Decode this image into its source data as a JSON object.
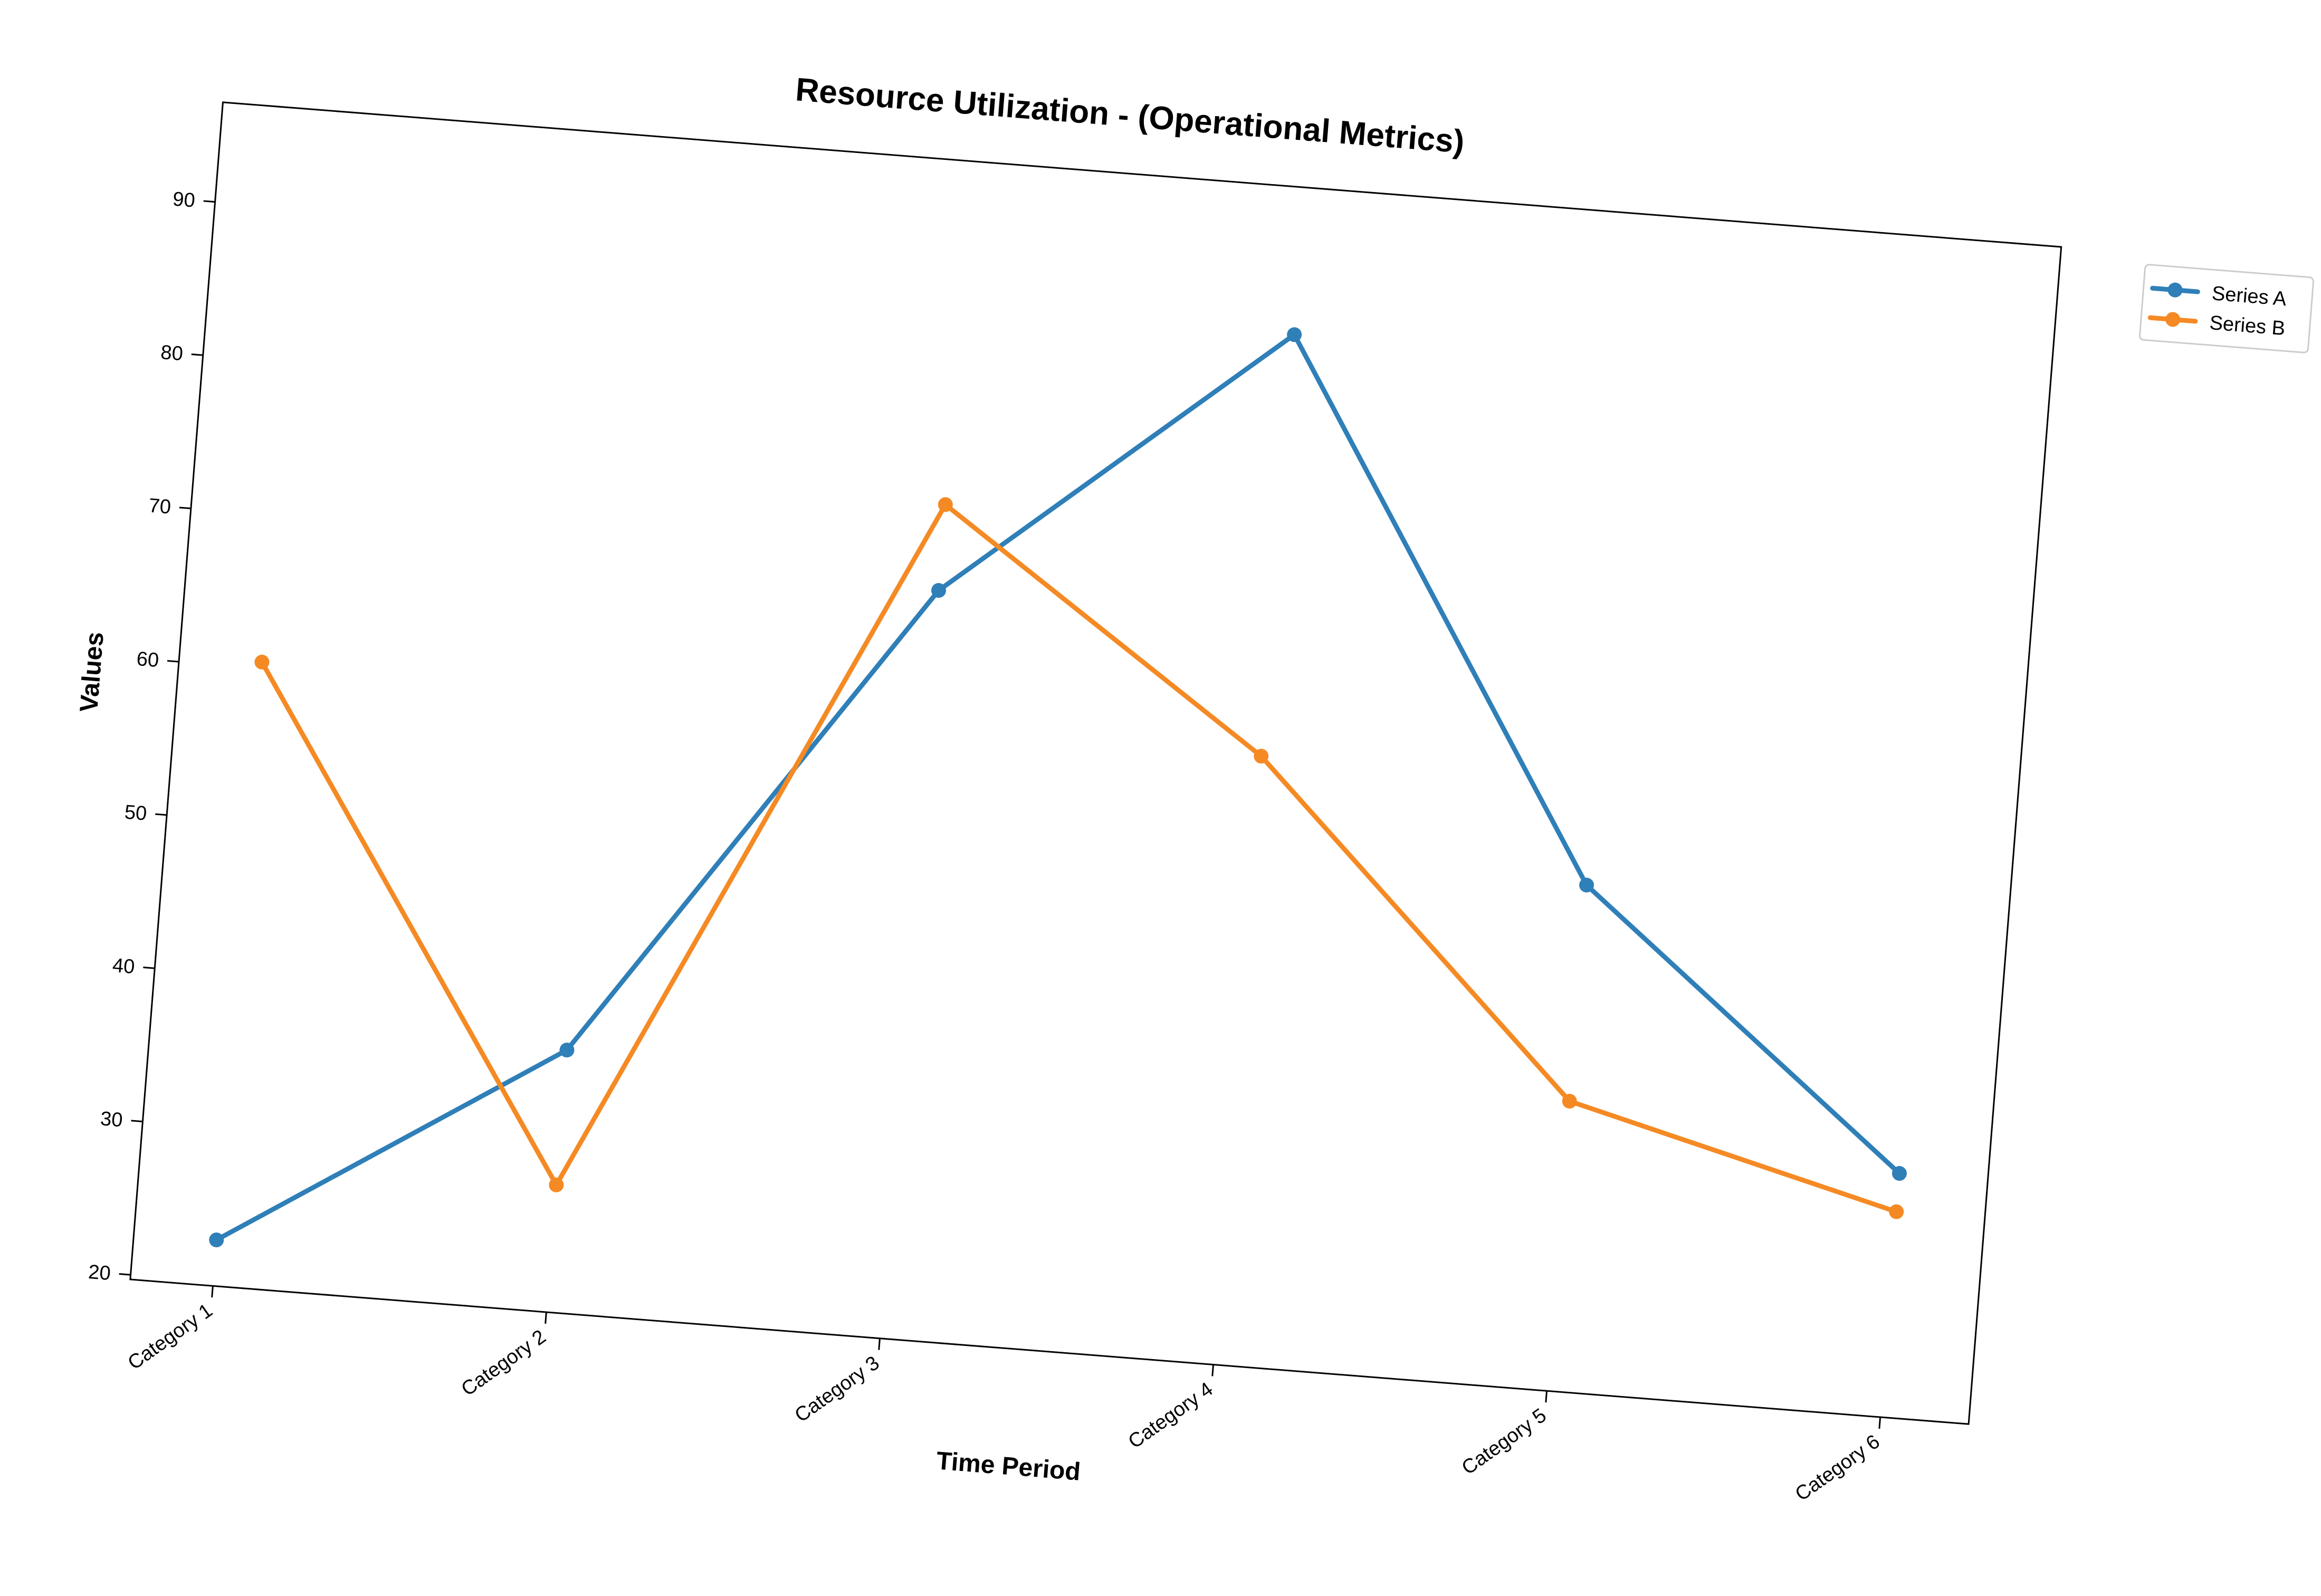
{
  "chart_data": {
    "type": "line",
    "title": "Resource Utilization - (Operational Metrics)",
    "xlabel": "Time Period",
    "ylabel": "Values",
    "categories": [
      "Category 1",
      "Category 2",
      "Category 3",
      "Category 4",
      "Category 5",
      "Category 6"
    ],
    "yticks": [
      20,
      30,
      40,
      50,
      60,
      70,
      80,
      90
    ],
    "ylim": [
      19.7,
      96.5
    ],
    "grid": false,
    "legend_position": "outside-top-right",
    "series": [
      {
        "name": "Series A",
        "color": "#2f7fb8",
        "values": [
          22.7,
          36.8,
          68.5,
          86.9,
          52.7,
          35.6
        ]
      },
      {
        "name": "Series B",
        "color": "#f58a24",
        "values": [
          60.4,
          28.0,
          74.1,
          59.4,
          38.6,
          33.1
        ]
      }
    ]
  }
}
